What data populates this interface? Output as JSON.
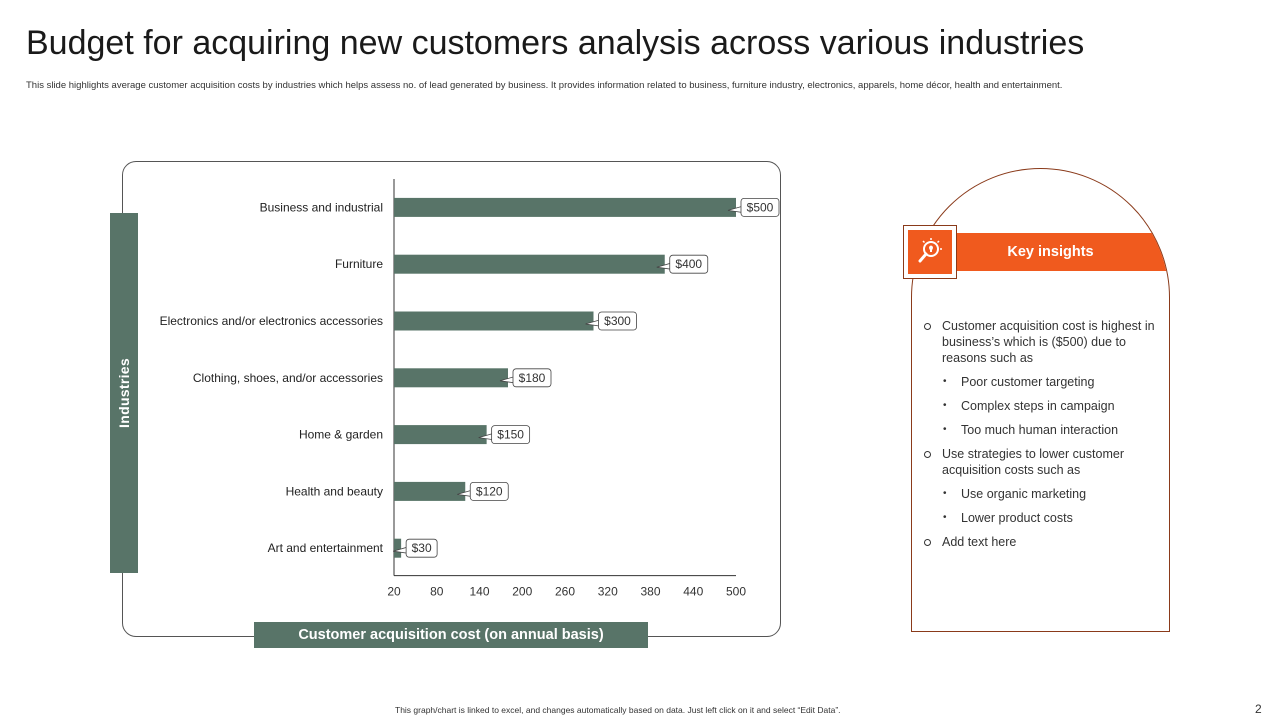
{
  "page": {
    "title": "Budget for acquiring new customers analysis across various industries",
    "subtitle": "This slide highlights average customer acquisition costs by industries which helps assess no. of lead generated by business. It provides information related to business, furniture industry, electronics, apparels, home décor, health and entertainment.",
    "footnote": "This graph/chart is linked to excel, and changes automatically based on data. Just left click on it and select “Edit Data”.",
    "page_number": "2"
  },
  "chart_data": {
    "type": "bar",
    "orientation": "horizontal",
    "categories": [
      "Business and industrial",
      "Furniture",
      "Electronics and/or electronics accessories",
      "Clothing, shoes, and/or accessories",
      "Home & garden",
      "Health and beauty",
      "Art and entertainment"
    ],
    "values": [
      500,
      400,
      300,
      180,
      150,
      120,
      30
    ],
    "data_labels": [
      "$500",
      "$400",
      "$300",
      "$180",
      "$150",
      "$120",
      "$30"
    ],
    "xlim": [
      20,
      500
    ],
    "x_ticks": [
      20,
      80,
      140,
      200,
      260,
      320,
      380,
      440,
      500
    ],
    "xlabel": "Customer acquisition cost (on annual basis)",
    "ylabel": "Industries",
    "grid": false,
    "bar_color": "#587468"
  },
  "insights": {
    "header": "Key insights",
    "accent_color": "#f05a1e",
    "icon": "lightbulb-magnifier-icon",
    "items": [
      {
        "level": 1,
        "text": "Customer acquisition cost is highest in business’s which is ($500) due to reasons such as"
      },
      {
        "level": 2,
        "text": "Poor customer targeting"
      },
      {
        "level": 2,
        "text": "Complex steps in campaign"
      },
      {
        "level": 2,
        "text": "Too much human interaction"
      },
      {
        "level": 1,
        "text": "Use strategies to lower customer acquisition costs such as"
      },
      {
        "level": 2,
        "text": "Use organic marketing"
      },
      {
        "level": 2,
        "text": "Lower product costs"
      },
      {
        "level": 1,
        "text": "Add text here"
      }
    ]
  }
}
